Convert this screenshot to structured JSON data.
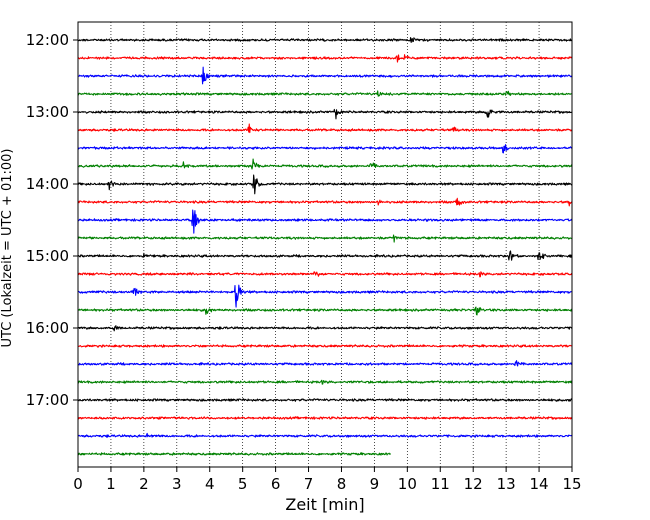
{
  "chart_data": {
    "type": "line",
    "title": "",
    "xlabel": "Zeit  [min]",
    "ylabel": "UTC (Lokalzeit = UTC + 01:00)",
    "xlim": [
      0,
      15
    ],
    "x_ticks": [
      "0",
      "1",
      "2",
      "3",
      "4",
      "5",
      "6",
      "7",
      "8",
      "9",
      "10",
      "11",
      "12",
      "13",
      "14",
      "15"
    ],
    "y_tick_labels": [
      "12:00",
      "13:00",
      "14:00",
      "15:00",
      "16:00",
      "17:00"
    ],
    "grid": "vertical dotted",
    "trace_interval_min": 15,
    "trace_colors": [
      "#000000",
      "#ff0000",
      "#0000ff",
      "#008000"
    ],
    "traces": [
      {
        "start": "12:00",
        "end_min": 15,
        "events": [
          {
            "t": 10.1,
            "amp": 0.35
          }
        ]
      },
      {
        "start": "12:15",
        "end_min": 15,
        "events": [
          {
            "t": 9.7,
            "amp": 0.35
          },
          {
            "t": 9.9,
            "amp": 0.3
          }
        ]
      },
      {
        "start": "12:30",
        "end_min": 15,
        "events": [
          {
            "t": 3.8,
            "amp": 0.9
          }
        ]
      },
      {
        "start": "12:45",
        "end_min": 15,
        "events": [
          {
            "t": 9.1,
            "amp": 0.3
          },
          {
            "t": 13.0,
            "amp": 0.3
          }
        ]
      },
      {
        "start": "13:00",
        "end_min": 15,
        "events": [
          {
            "t": 7.8,
            "amp": 0.7
          },
          {
            "t": 12.4,
            "amp": 0.9
          }
        ]
      },
      {
        "start": "13:15",
        "end_min": 15,
        "events": [
          {
            "t": 5.2,
            "amp": 0.55
          },
          {
            "t": 11.4,
            "amp": 0.3
          }
        ]
      },
      {
        "start": "13:30",
        "end_min": 15,
        "events": [
          {
            "t": 12.9,
            "amp": 0.7
          }
        ]
      },
      {
        "start": "13:45",
        "end_min": 15,
        "events": [
          {
            "t": 3.2,
            "amp": 0.3
          },
          {
            "t": 5.3,
            "amp": 0.6
          },
          {
            "t": 8.9,
            "amp": 0.35
          }
        ]
      },
      {
        "start": "14:00",
        "end_min": 15,
        "events": [
          {
            "t": 0.95,
            "amp": 0.5
          },
          {
            "t": 5.35,
            "amp": 1.3
          }
        ]
      },
      {
        "start": "14:15",
        "end_min": 15,
        "events": [
          {
            "t": 9.1,
            "amp": 0.3
          },
          {
            "t": 11.5,
            "amp": 0.7
          },
          {
            "t": 14.9,
            "amp": 0.4
          }
        ]
      },
      {
        "start": "14:30",
        "end_min": 15,
        "events": [
          {
            "t": 3.5,
            "amp": 1.3
          }
        ]
      },
      {
        "start": "14:45",
        "end_min": 15,
        "events": [
          {
            "t": 9.6,
            "amp": 0.3
          }
        ]
      },
      {
        "start": "15:00",
        "end_min": 15,
        "events": [
          {
            "t": 2.0,
            "amp": 0.3
          },
          {
            "t": 13.1,
            "amp": 0.6
          },
          {
            "t": 14.0,
            "amp": 0.8
          }
        ]
      },
      {
        "start": "15:15",
        "end_min": 15,
        "events": [
          {
            "t": 7.2,
            "amp": 0.45
          },
          {
            "t": 12.2,
            "amp": 0.3
          }
        ]
      },
      {
        "start": "15:30",
        "end_min": 15,
        "events": [
          {
            "t": 1.7,
            "amp": 0.6
          },
          {
            "t": 4.8,
            "amp": 1.8
          }
        ]
      },
      {
        "start": "15:45",
        "end_min": 15,
        "events": [
          {
            "t": 3.9,
            "amp": 0.5
          },
          {
            "t": 12.1,
            "amp": 0.55
          }
        ]
      },
      {
        "start": "16:00",
        "end_min": 15,
        "events": [
          {
            "t": 1.1,
            "amp": 0.3
          }
        ]
      },
      {
        "start": "16:15",
        "end_min": 15,
        "events": []
      },
      {
        "start": "16:30",
        "end_min": 15,
        "events": [
          {
            "t": 13.3,
            "amp": 0.3
          }
        ]
      },
      {
        "start": "16:45",
        "end_min": 15,
        "events": [
          {
            "t": 7.4,
            "amp": 0.25
          }
        ]
      },
      {
        "start": "17:00",
        "end_min": 15,
        "events": []
      },
      {
        "start": "17:15",
        "end_min": 15,
        "events": []
      },
      {
        "start": "17:30",
        "end_min": 15,
        "events": [
          {
            "t": 2.1,
            "amp": 0.2
          }
        ]
      },
      {
        "start": "17:45",
        "end_min": 9.5,
        "events": []
      }
    ]
  }
}
